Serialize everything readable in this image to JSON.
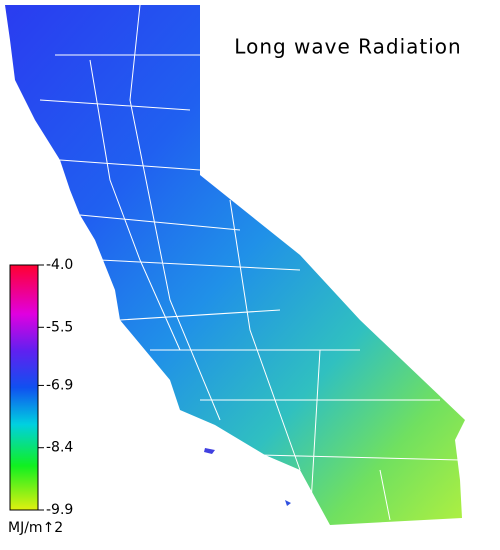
{
  "title": "Long wave Radiation",
  "colorbar": {
    "range": [
      -9.9,
      -4
    ],
    "ticks": [
      {
        "value": -4,
        "label": "-4.0"
      },
      -5.5,
      -6.9,
      -8.4,
      -9.9
    ],
    "label": "MJ/m↑2"
  }
}
